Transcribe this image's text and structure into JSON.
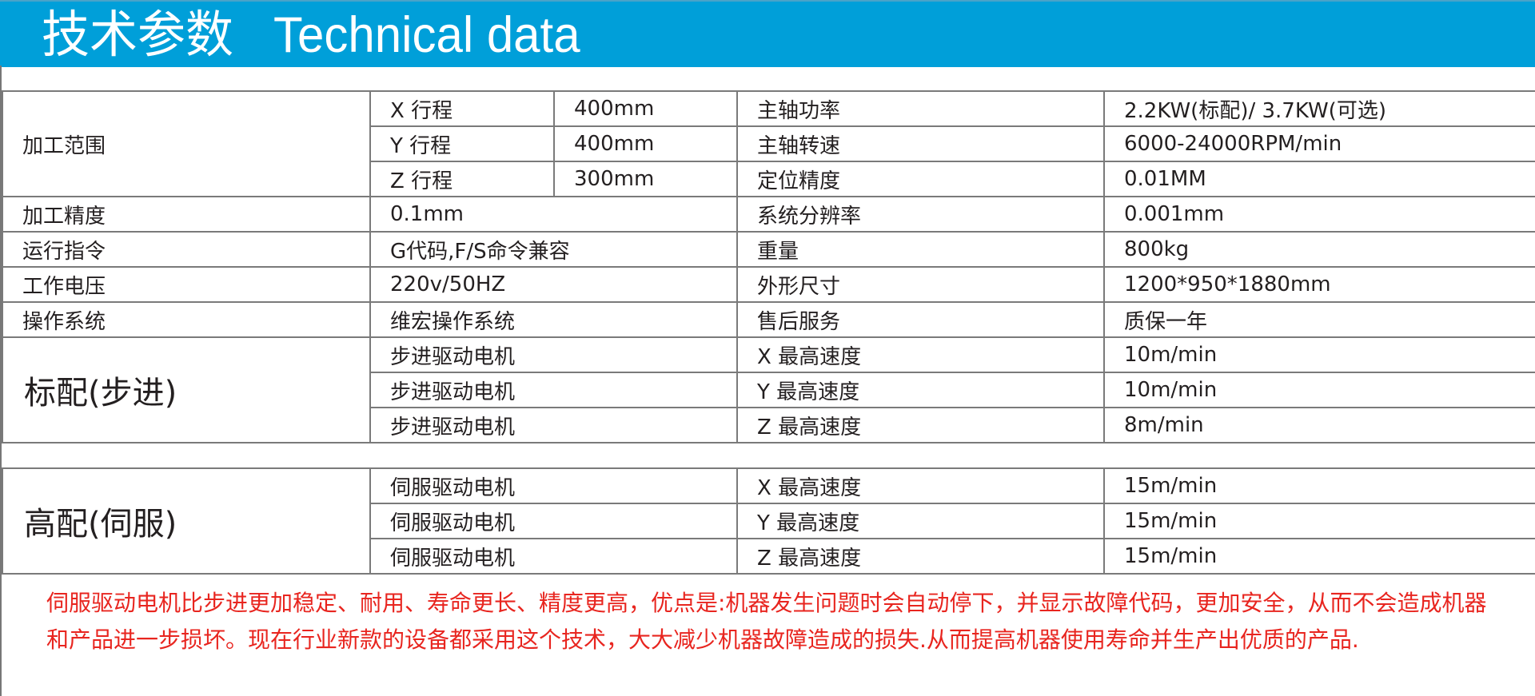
{
  "header": {
    "title": "技术参数   Technical data",
    "background": "#009fd9"
  },
  "table1": {
    "range": {
      "label": "加工范围",
      "rows": [
        {
          "axis": "X 行程",
          "value": "400mm",
          "param": "主轴功率",
          "param_value": "2.2KW(标配)/ 3.7KW(可选)"
        },
        {
          "axis": "Y 行程",
          "value": "400mm",
          "param": "主轴转速",
          "param_value": "6000-24000RPM/min"
        },
        {
          "axis": "Z 行程",
          "value": "300mm",
          "param": "定位精度",
          "param_value": "0.01MM"
        }
      ]
    },
    "rows": [
      {
        "label": "加工精度",
        "value": "0.1mm",
        "param": "系统分辨率",
        "param_value": "0.001mm"
      },
      {
        "label": "运行指令",
        "value": "G代码,F/S命令兼容",
        "param": "重量",
        "param_value": "800kg"
      },
      {
        "label": "工作电压",
        "value": "220v/50HZ",
        "param": "外形尺寸",
        "param_value": "1200*950*1880mm"
      },
      {
        "label": "操作系统",
        "value": "维宏操作系统",
        "param": "售后服务",
        "param_value": "质保一年"
      }
    ],
    "standard": {
      "label": "标配(步进)",
      "rows": [
        {
          "motor": "步进驱动电机",
          "param": "X 最高速度",
          "value": "10m/min"
        },
        {
          "motor": "步进驱动电机",
          "param": "Y 最高速度",
          "value": "10m/min"
        },
        {
          "motor": "步进驱动电机",
          "param": "Z 最高速度",
          "value": "8m/min"
        }
      ]
    }
  },
  "table2": {
    "premium": {
      "label": "高配(伺服)",
      "rows": [
        {
          "motor": "伺服驱动电机",
          "param": "X 最高速度",
          "value": "15m/min"
        },
        {
          "motor": "伺服驱动电机",
          "param": "Y 最高速度",
          "value": "15m/min"
        },
        {
          "motor": "伺服驱动电机",
          "param": "Z 最高速度",
          "value": "15m/min"
        }
      ]
    }
  },
  "note": {
    "text": "伺服驱动电机比步进更加稳定、耐用、寿命更长、精度更高，优点是:机器发生问题时会自动停下，并显示故障代码，更加安全，从而不会造成机器和产品进一步损坏。现在行业新款的设备都采用这个技术，大大减少机器故障造成的损失.从而提高机器使用寿命并生产出优质的产品.",
    "color": "#e8251f"
  }
}
